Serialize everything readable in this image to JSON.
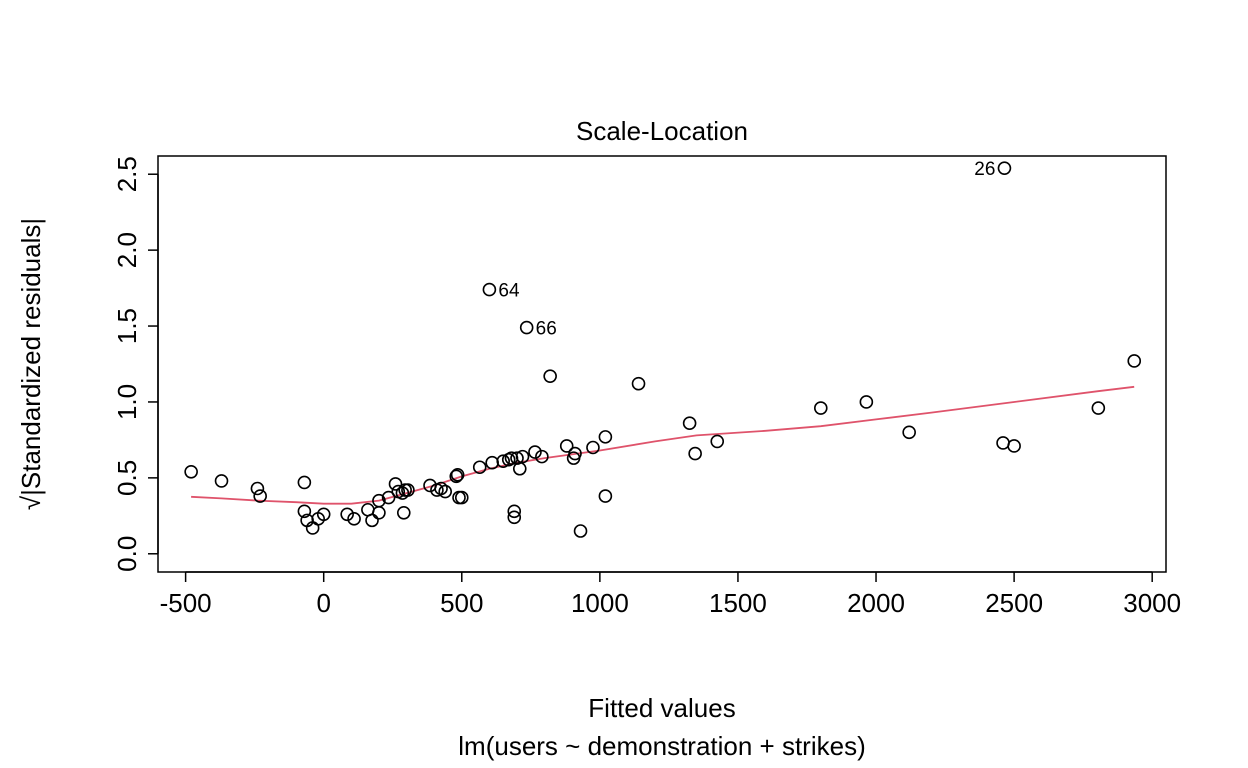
{
  "chart_data": {
    "type": "scatter",
    "title": "Scale-Location",
    "xlabel": "Fitted values",
    "subtitle": "lm(users ~ demonstration + strikes)",
    "ylabel": "√|Standardized residuals|",
    "xlim": [
      -600,
      3050
    ],
    "ylim": [
      -0.12,
      2.62
    ],
    "x_ticks": [
      -500,
      0,
      500,
      1000,
      1500,
      2000,
      2500,
      3000
    ],
    "y_ticks": [
      0.0,
      0.5,
      1.0,
      1.5,
      2.0,
      2.5
    ],
    "x_tick_labels": [
      "-500",
      "0",
      "500",
      "1000",
      "1500",
      "2000",
      "2500",
      "3000"
    ],
    "y_tick_labels": [
      "0.0",
      "0.5",
      "1.0",
      "1.5",
      "2.0",
      "2.5"
    ],
    "grid": false,
    "point_color": "#000000",
    "smooth_color": "#DF536B",
    "points": [
      {
        "x": -480,
        "y": 0.54
      },
      {
        "x": -370,
        "y": 0.48
      },
      {
        "x": -240,
        "y": 0.43
      },
      {
        "x": -230,
        "y": 0.38
      },
      {
        "x": -70,
        "y": 0.47
      },
      {
        "x": -70,
        "y": 0.28
      },
      {
        "x": -60,
        "y": 0.22
      },
      {
        "x": -40,
        "y": 0.17
      },
      {
        "x": -20,
        "y": 0.23
      },
      {
        "x": 0,
        "y": 0.26
      },
      {
        "x": 85,
        "y": 0.26
      },
      {
        "x": 110,
        "y": 0.23
      },
      {
        "x": 160,
        "y": 0.29
      },
      {
        "x": 175,
        "y": 0.22
      },
      {
        "x": 200,
        "y": 0.35
      },
      {
        "x": 200,
        "y": 0.27
      },
      {
        "x": 235,
        "y": 0.37
      },
      {
        "x": 260,
        "y": 0.46
      },
      {
        "x": 270,
        "y": 0.41
      },
      {
        "x": 285,
        "y": 0.4
      },
      {
        "x": 290,
        "y": 0.27
      },
      {
        "x": 295,
        "y": 0.42
      },
      {
        "x": 305,
        "y": 0.42
      },
      {
        "x": 385,
        "y": 0.45
      },
      {
        "x": 410,
        "y": 0.42
      },
      {
        "x": 425,
        "y": 0.43
      },
      {
        "x": 440,
        "y": 0.41
      },
      {
        "x": 480,
        "y": 0.51
      },
      {
        "x": 485,
        "y": 0.52
      },
      {
        "x": 490,
        "y": 0.37
      },
      {
        "x": 500,
        "y": 0.37
      },
      {
        "x": 565,
        "y": 0.57
      },
      {
        "x": 600,
        "y": 1.74
      },
      {
        "x": 610,
        "y": 0.6
      },
      {
        "x": 650,
        "y": 0.61
      },
      {
        "x": 670,
        "y": 0.62
      },
      {
        "x": 680,
        "y": 0.63
      },
      {
        "x": 690,
        "y": 0.28
      },
      {
        "x": 690,
        "y": 0.24
      },
      {
        "x": 700,
        "y": 0.63
      },
      {
        "x": 710,
        "y": 0.56
      },
      {
        "x": 720,
        "y": 0.64
      },
      {
        "x": 735,
        "y": 1.49
      },
      {
        "x": 765,
        "y": 0.67
      },
      {
        "x": 790,
        "y": 0.64
      },
      {
        "x": 820,
        "y": 1.17
      },
      {
        "x": 880,
        "y": 0.71
      },
      {
        "x": 905,
        "y": 0.63
      },
      {
        "x": 910,
        "y": 0.66
      },
      {
        "x": 930,
        "y": 0.15
      },
      {
        "x": 975,
        "y": 0.7
      },
      {
        "x": 1020,
        "y": 0.77
      },
      {
        "x": 1020,
        "y": 0.38
      },
      {
        "x": 1140,
        "y": 1.12
      },
      {
        "x": 1325,
        "y": 0.86
      },
      {
        "x": 1345,
        "y": 0.66
      },
      {
        "x": 1425,
        "y": 0.74
      },
      {
        "x": 1800,
        "y": 0.96
      },
      {
        "x": 1965,
        "y": 1.0
      },
      {
        "x": 2120,
        "y": 0.8
      },
      {
        "x": 2465,
        "y": 2.54
      },
      {
        "x": 2460,
        "y": 0.73
      },
      {
        "x": 2500,
        "y": 0.71
      },
      {
        "x": 2805,
        "y": 0.96
      },
      {
        "x": 2935,
        "y": 1.27
      }
    ],
    "point_labels": [
      {
        "text": "26",
        "x": 2465,
        "y": 2.54,
        "side": "left"
      },
      {
        "text": "64",
        "x": 600,
        "y": 1.74,
        "side": "right"
      },
      {
        "text": "66",
        "x": 735,
        "y": 1.49,
        "side": "right"
      }
    ],
    "smooth_line": {
      "x": [
        -480,
        -370,
        -240,
        -100,
        0,
        100,
        200,
        300,
        400,
        500,
        600,
        700,
        800,
        1000,
        1200,
        1350,
        1600,
        1800,
        2000,
        2200,
        2500,
        2800,
        2935
      ],
      "y": [
        0.375,
        0.365,
        0.35,
        0.34,
        0.33,
        0.33,
        0.35,
        0.4,
        0.45,
        0.51,
        0.56,
        0.6,
        0.63,
        0.68,
        0.74,
        0.78,
        0.81,
        0.84,
        0.885,
        0.93,
        1.0,
        1.07,
        1.1
      ]
    }
  }
}
